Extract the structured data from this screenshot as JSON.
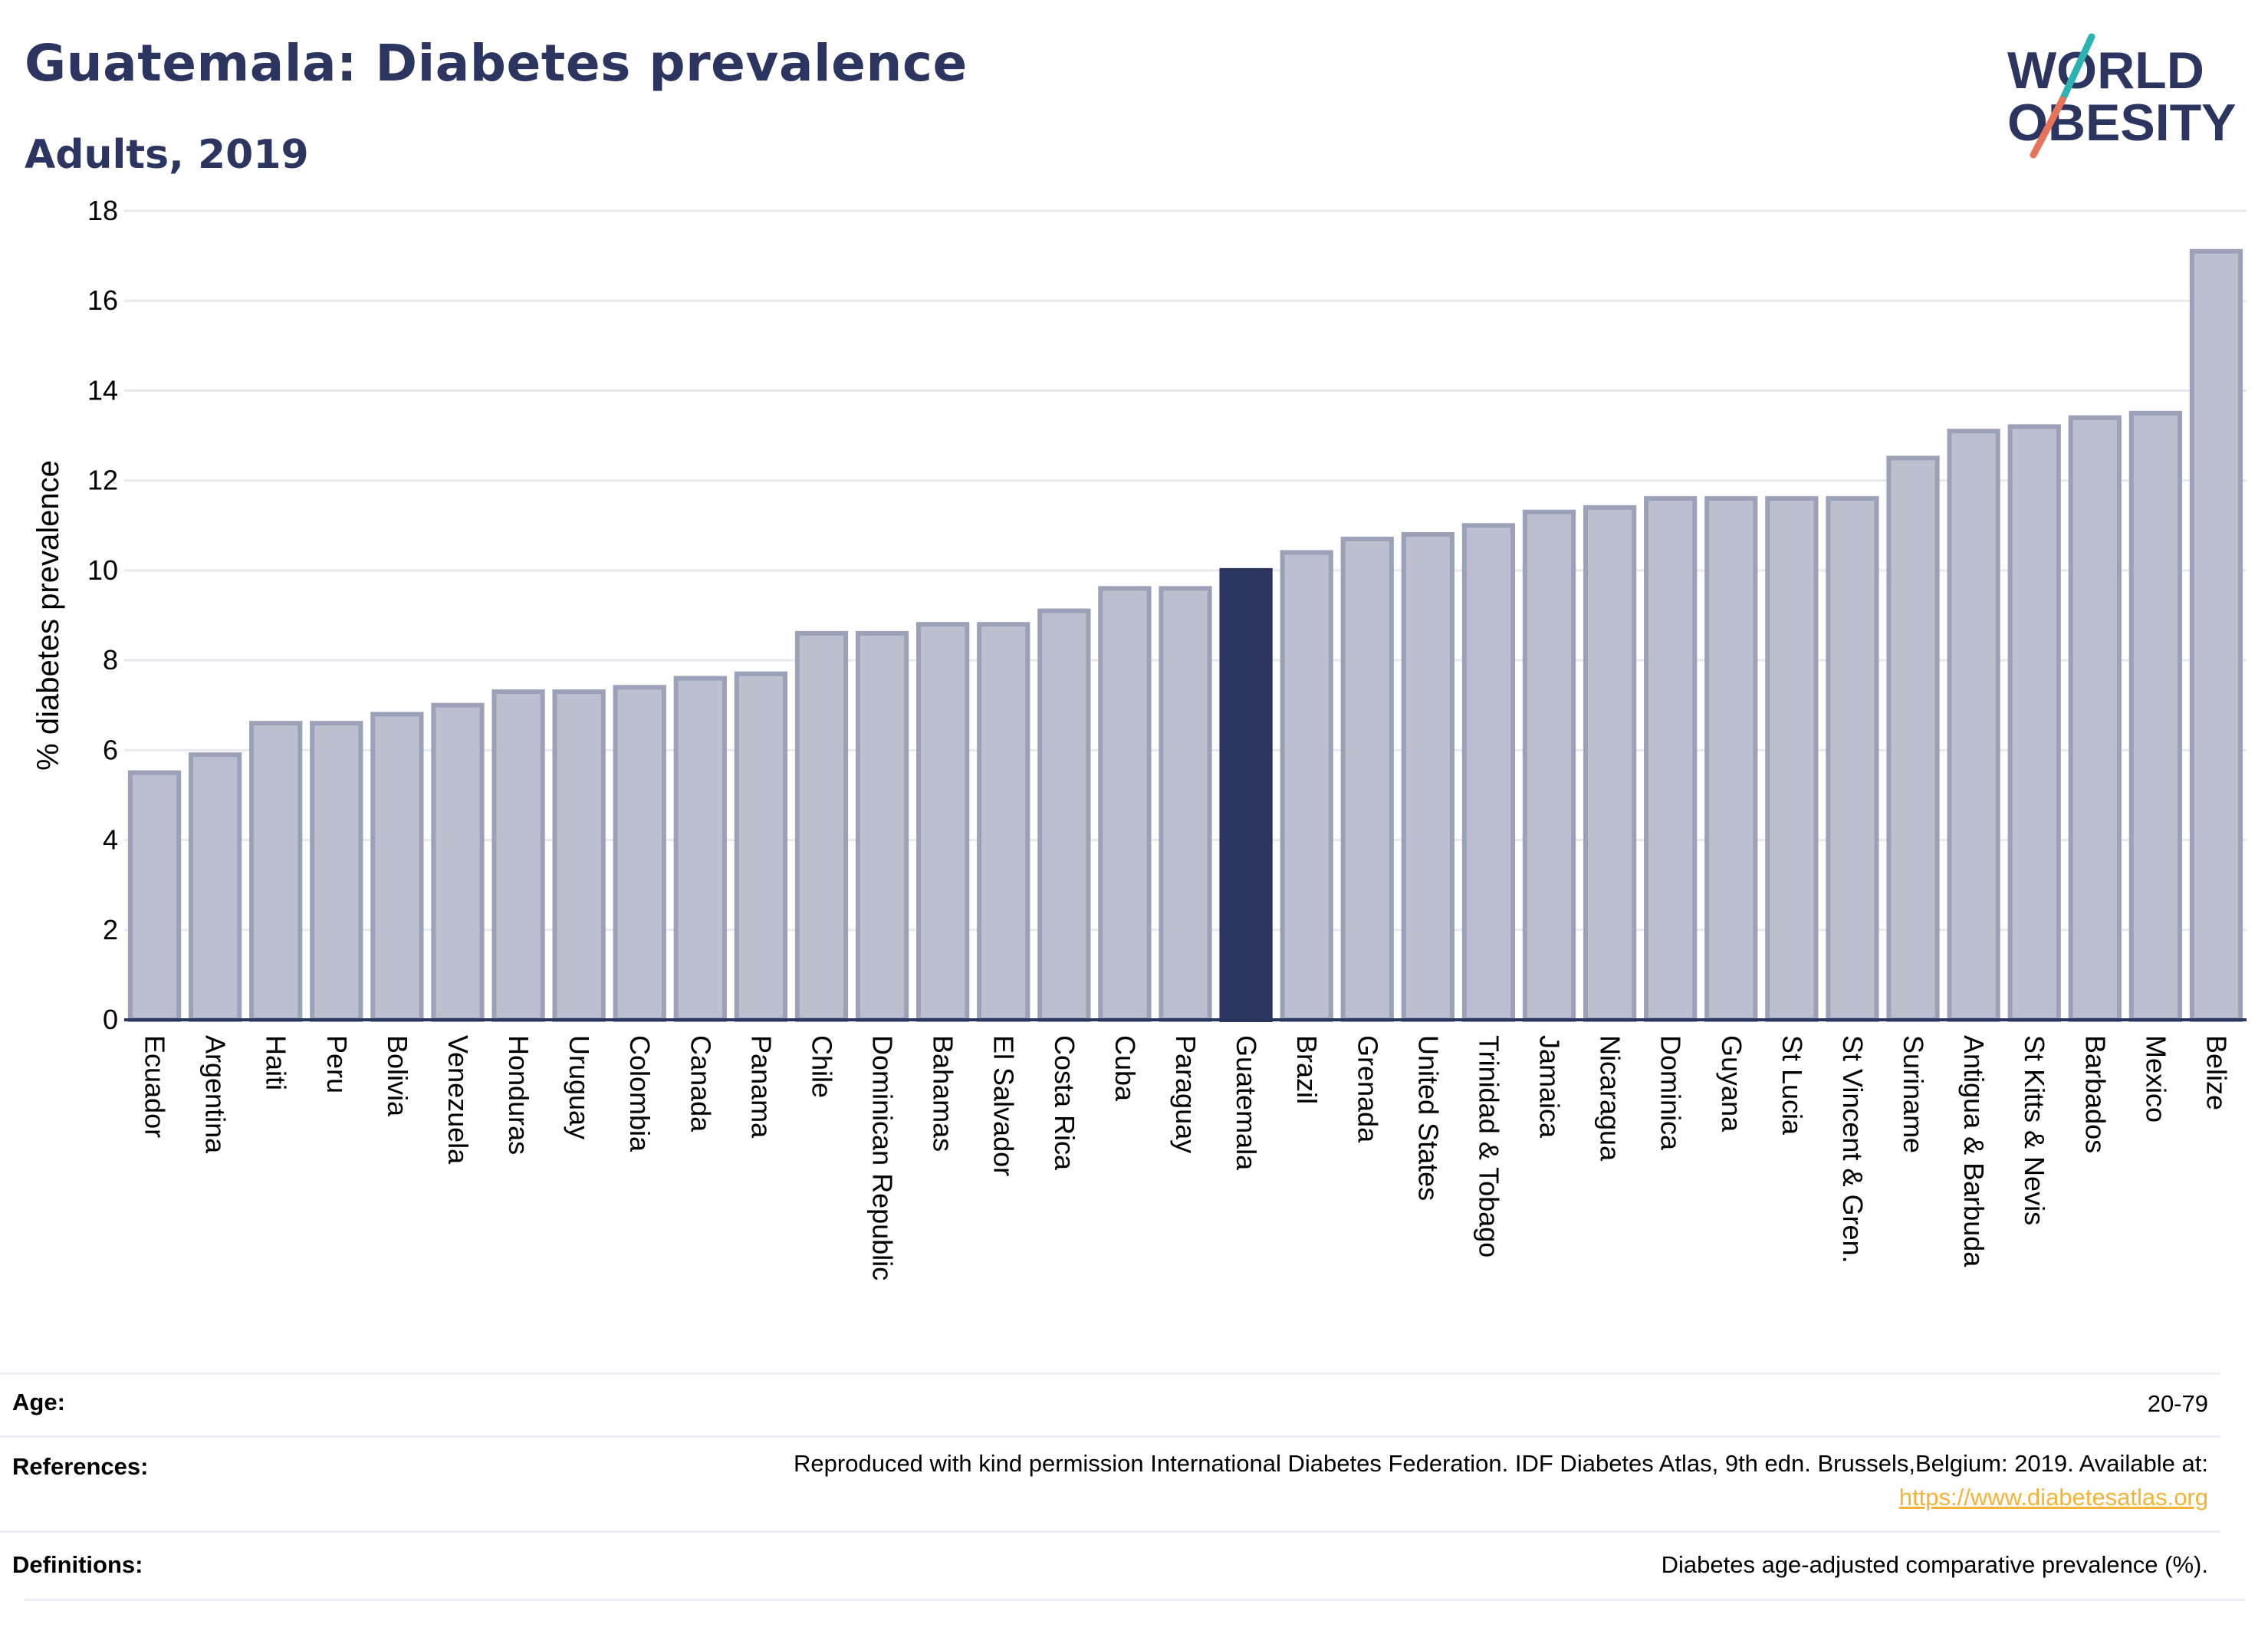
{
  "header": {
    "title": "Guatemala: Diabetes prevalence",
    "subtitle": "Adults, 2019",
    "logo_line1": "WORLD",
    "logo_line2": "OBESITY"
  },
  "colors": {
    "title": "#2b3560",
    "bar": "#bcc0ce",
    "bar_border": "#9aa1b8",
    "highlight": "#2b3560",
    "logo_teal": "#2bb3b1",
    "logo_coral": "#e8735b",
    "link": "#f5b335"
  },
  "chart_data": {
    "type": "bar",
    "ylabel": "% diabetes prevalence",
    "xlabel": "",
    "ylim": [
      0,
      18
    ],
    "yticks": [
      0,
      2,
      4,
      6,
      8,
      10,
      12,
      14,
      16,
      18
    ],
    "grid": true,
    "highlight": "Guatemala",
    "categories": [
      "Ecuador",
      "Argentina",
      "Haiti",
      "Peru",
      "Bolivia",
      "Venezuela",
      "Honduras",
      "Uruguay",
      "Colombia",
      "Canada",
      "Panama",
      "Chile",
      "Dominican Republic",
      "Bahamas",
      "El Salvador",
      "Costa Rica",
      "Cuba",
      "Paraguay",
      "Guatemala",
      "Brazil",
      "Grenada",
      "United States",
      "Trinidad & Tobago",
      "Jamaica",
      "Nicaragua",
      "Dominica",
      "Guyana",
      "St Lucia",
      "St Vincent & Gren.",
      "Suriname",
      "Antigua & Barbuda",
      "St Kitts & Nevis",
      "Barbados",
      "Mexico",
      "Belize"
    ],
    "values": [
      5.5,
      5.9,
      6.6,
      6.6,
      6.8,
      7.0,
      7.3,
      7.3,
      7.4,
      7.6,
      7.7,
      8.6,
      8.6,
      8.8,
      8.8,
      9.1,
      9.6,
      9.6,
      10.0,
      10.4,
      10.7,
      10.8,
      11.0,
      11.3,
      11.4,
      11.6,
      11.6,
      11.6,
      11.6,
      12.5,
      13.1,
      13.2,
      13.4,
      13.5,
      17.1
    ]
  },
  "info": {
    "age_label": "Age:",
    "age_value": "20-79",
    "references_label": "References:",
    "references_text": "Reproduced with kind permission International Diabetes Federation. IDF Diabetes Atlas, 9th edn. Brussels,Belgium: 2019. Available at:",
    "references_link": "https://www.diabetesatlas.org",
    "definitions_label": "Definitions:",
    "definitions_value": "Diabetes age-adjusted comparative prevalence (%)."
  }
}
